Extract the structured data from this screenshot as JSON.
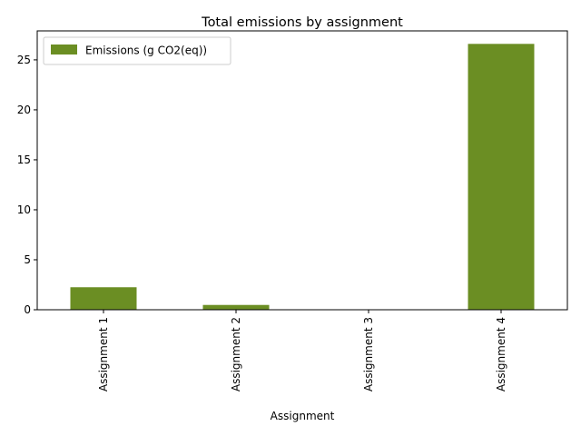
{
  "chart_data": {
    "type": "bar",
    "title": "Total emissions by assignment",
    "xlabel": "Assignment",
    "ylabel": "",
    "categories": [
      "Assignment 1",
      "Assignment 2",
      "Assignment 3",
      "Assignment 4"
    ],
    "series": [
      {
        "name": "Emissions (g CO2(eq))",
        "values": [
          2.25,
          0.48,
          0.0,
          26.6
        ],
        "color": "#6b8e23"
      }
    ],
    "ylim": [
      0,
      27.9
    ],
    "yticks": [
      0,
      5,
      10,
      15,
      20,
      25
    ],
    "grid": false,
    "legend_position": "top-left"
  }
}
